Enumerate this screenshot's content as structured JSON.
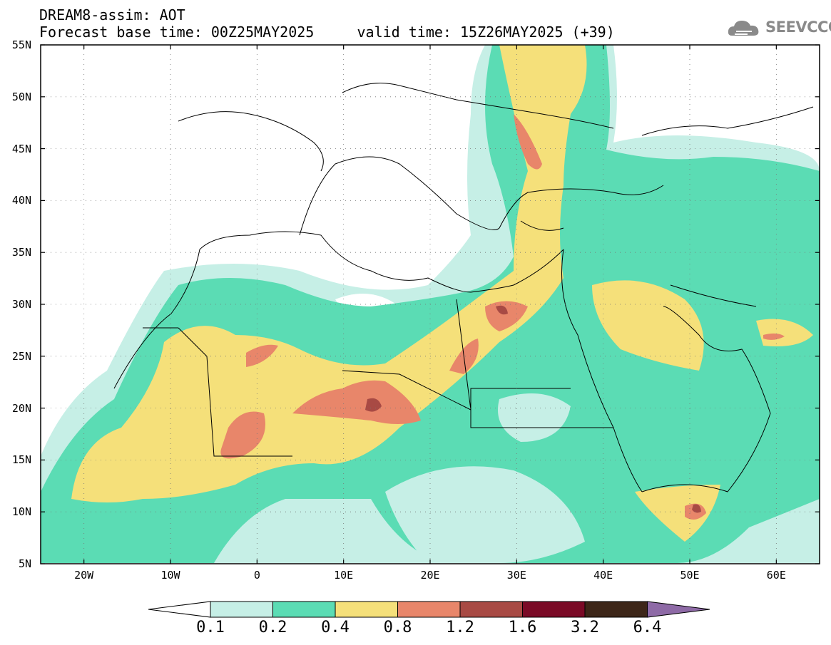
{
  "header": {
    "line1": "DREAM8-assim: AOT",
    "line2": "Forecast base time: 00Z25MAY2025     valid time: 15Z26MAY2025 (+39)"
  },
  "logo": {
    "text": "SEEVCCC",
    "icon": "cloud-logo-icon",
    "color": "#8a8a8a"
  },
  "map": {
    "lon_range": [
      -25,
      65
    ],
    "lat_range": [
      5,
      55
    ],
    "lat_labels": [
      "55N",
      "50N",
      "45N",
      "40N",
      "35N",
      "30N",
      "25N",
      "20N",
      "15N",
      "10N",
      "5N"
    ],
    "lon_labels": [
      "20W",
      "10W",
      "0",
      "10E",
      "20E",
      "30E",
      "40E",
      "50E",
      "60E"
    ],
    "field": "Aerosol optical thickness (dust)"
  },
  "colorbar": {
    "labels": [
      "0.1",
      "0.2",
      "0.4",
      "0.8",
      "1.2",
      "1.6",
      "3.2",
      "6.4"
    ],
    "colors": [
      "#ffffff",
      "#c6efe6",
      "#5bdcb4",
      "#f5e07a",
      "#e8866a",
      "#a84a44",
      "#7a0a26",
      "#3d2618",
      "#8e6aa6"
    ]
  }
}
